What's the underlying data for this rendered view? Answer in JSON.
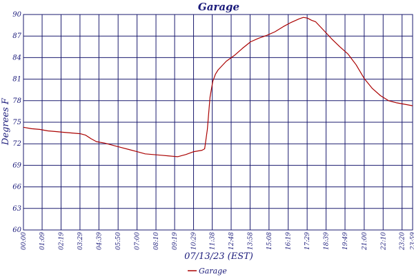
{
  "chart_data": {
    "type": "line",
    "title": "Garage",
    "xlabel": "07/13/23 (EST)",
    "ylabel": "Degrees F",
    "ylim": [
      60,
      90
    ],
    "yticks": [
      "60",
      "63",
      "66",
      "69",
      "72",
      "75",
      "78",
      "81",
      "84",
      "87",
      "90"
    ],
    "xlim": [
      "00:00",
      "23:59"
    ],
    "xticks": [
      "00:00",
      "01:09",
      "02:19",
      "03:29",
      "04:39",
      "05:50",
      "07:00",
      "08:10",
      "09:19",
      "10:29",
      "11:38",
      "12:48",
      "13:58",
      "15:08",
      "16:19",
      "17:29",
      "18:39",
      "19:49",
      "21:00",
      "22:10",
      "23:20",
      "23:59"
    ],
    "grid": true,
    "legend": "bottom-center",
    "colors": {
      "line": "#aa0000",
      "grid": "#1a1a6e",
      "text": "#1a1a7a"
    },
    "series": [
      {
        "name": "Garage",
        "x": [
          "00:00",
          "00:30",
          "01:00",
          "01:30",
          "02:00",
          "02:30",
          "03:00",
          "03:30",
          "03:50",
          "04:10",
          "04:30",
          "05:00",
          "05:30",
          "06:00",
          "06:30",
          "07:00",
          "07:30",
          "08:00",
          "08:30",
          "09:00",
          "09:30",
          "10:00",
          "10:30",
          "11:00",
          "11:10",
          "11:20",
          "11:30",
          "11:40",
          "11:50",
          "12:00",
          "12:30",
          "13:00",
          "13:30",
          "14:00",
          "14:30",
          "15:00",
          "15:30",
          "16:00",
          "16:30",
          "17:00",
          "17:15",
          "17:30",
          "17:45",
          "18:00",
          "18:30",
          "19:00",
          "19:30",
          "20:00",
          "20:30",
          "21:00",
          "21:30",
          "22:00",
          "22:30",
          "23:00",
          "23:30",
          "23:59"
        ],
        "values": [
          74.3,
          74.1,
          74.0,
          73.8,
          73.7,
          73.6,
          73.5,
          73.4,
          73.2,
          72.7,
          72.3,
          72.1,
          71.8,
          71.5,
          71.2,
          70.9,
          70.6,
          70.5,
          70.4,
          70.3,
          70.2,
          70.5,
          70.9,
          71.1,
          71.3,
          74.0,
          78.5,
          80.7,
          81.7,
          82.3,
          83.5,
          84.3,
          85.3,
          86.2,
          86.7,
          87.1,
          87.6,
          88.3,
          88.9,
          89.4,
          89.6,
          89.5,
          89.2,
          89.0,
          87.8,
          86.6,
          85.5,
          84.5,
          83.0,
          81.1,
          79.7,
          78.7,
          78.0,
          77.7,
          77.5,
          77.3
        ]
      }
    ]
  }
}
